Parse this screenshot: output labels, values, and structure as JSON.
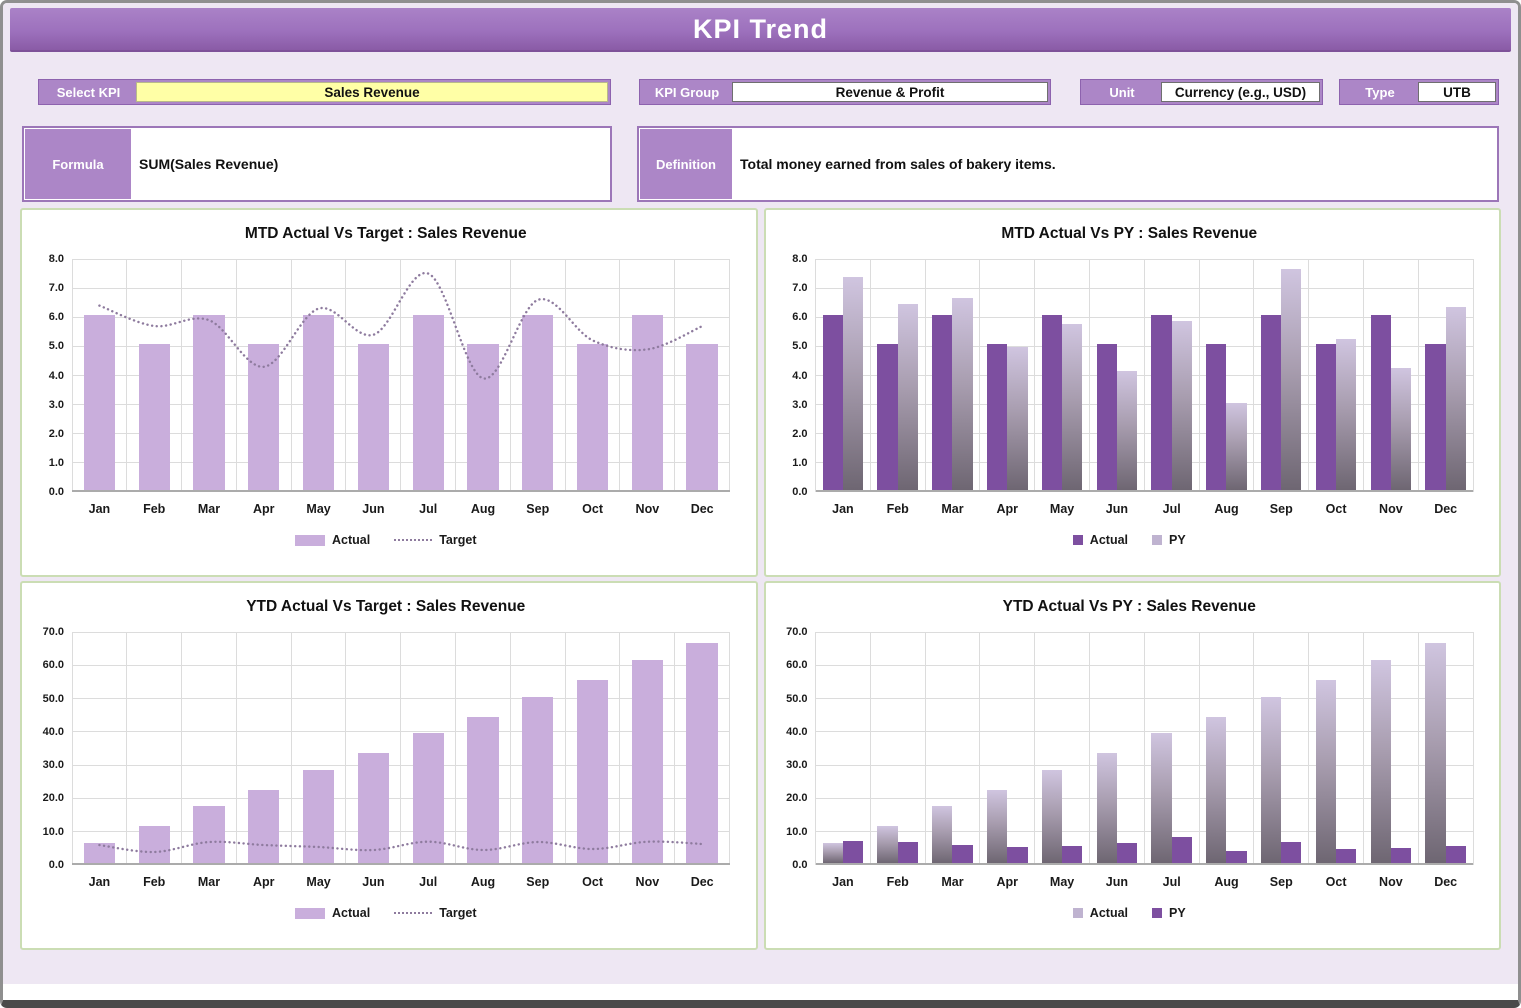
{
  "header": {
    "title": "KPI Trend"
  },
  "controls": {
    "select_kpi": {
      "label": "Select KPI",
      "value": "Sales Revenue"
    },
    "kpi_group": {
      "label": "KPI Group",
      "value": "Revenue & Profit"
    },
    "unit": {
      "label": "Unit",
      "value": "Currency (e.g., USD)"
    },
    "type": {
      "label": "Type",
      "value": "UTB"
    },
    "formula": {
      "label": "Formula",
      "value": "SUM(Sales Revenue)"
    },
    "definition": {
      "label": "Definition",
      "value": "Total money earned from sales of bakery items."
    }
  },
  "colors": {
    "accent_purple": "#9C76B8",
    "header_gradient_top": "#AA82C7",
    "header_gradient_bottom": "#8A5BA6",
    "light_bar": "#C9AEDC",
    "solid_bar": "#7D4FA0",
    "gradient_bar_top": "#D0C5E0",
    "gradient_bar_bottom": "#6E6672",
    "target_line": "#8E7B9E",
    "select_value_yellow": "#FFFFA6",
    "panel_border_green": "#CBDDB4",
    "page_background": "#EEE7F3"
  },
  "months": [
    "Jan",
    "Feb",
    "Mar",
    "Apr",
    "May",
    "Jun",
    "Jul",
    "Aug",
    "Sep",
    "Oct",
    "Nov",
    "Dec"
  ],
  "chart_data": [
    {
      "type": "bar+line",
      "title": "MTD Actual Vs Target : Sales Revenue",
      "categories": [
        "Jan",
        "Feb",
        "Mar",
        "Apr",
        "May",
        "Jun",
        "Jul",
        "Aug",
        "Sep",
        "Oct",
        "Nov",
        "Dec"
      ],
      "series": [
        {
          "name": "Actual",
          "type": "bar",
          "style": "light",
          "values": [
            6,
            5,
            6,
            5,
            6,
            5,
            6,
            5,
            6,
            5,
            6,
            5
          ]
        },
        {
          "name": "Target",
          "type": "line",
          "style": "dotted",
          "values": [
            6.4,
            5.7,
            5.9,
            4.3,
            6.3,
            5.4,
            7.5,
            3.9,
            6.6,
            5.2,
            4.9,
            5.7
          ]
        }
      ],
      "ylim": [
        0,
        8
      ],
      "ytick_step": 1,
      "grid": true,
      "legend_position": "bottom"
    },
    {
      "type": "grouped-bar",
      "title": "MTD Actual Vs PY : Sales Revenue",
      "categories": [
        "Jan",
        "Feb",
        "Mar",
        "Apr",
        "May",
        "Jun",
        "Jul",
        "Aug",
        "Sep",
        "Oct",
        "Nov",
        "Dec"
      ],
      "series": [
        {
          "name": "Actual",
          "type": "bar",
          "style": "solid",
          "values": [
            6,
            5,
            6,
            5,
            6,
            5,
            6,
            5,
            6,
            5,
            6,
            5
          ]
        },
        {
          "name": "PY",
          "type": "bar",
          "style": "gradient",
          "values": [
            7.3,
            6.4,
            6.6,
            4.9,
            5.7,
            4.1,
            5.8,
            3.0,
            7.6,
            5.2,
            4.2,
            6.3
          ]
        }
      ],
      "ylim": [
        0,
        8
      ],
      "ytick_step": 1,
      "grid": true,
      "legend_position": "bottom"
    },
    {
      "type": "bar+line",
      "title": "YTD Actual Vs Target : Sales Revenue",
      "categories": [
        "Jan",
        "Feb",
        "Mar",
        "Apr",
        "May",
        "Jun",
        "Jul",
        "Aug",
        "Sep",
        "Oct",
        "Nov",
        "Dec"
      ],
      "series": [
        {
          "name": "Actual",
          "type": "bar",
          "style": "light",
          "values": [
            6,
            11,
            17,
            22,
            28,
            33,
            39,
            44,
            50,
            55,
            61,
            66
          ]
        },
        {
          "name": "Target",
          "type": "line",
          "style": "dotted",
          "values": [
            6.0,
            3.9,
            6.9,
            6.0,
            5.4,
            4.5,
            7.0,
            4.5,
            6.9,
            4.8,
            7.0,
            6.3
          ]
        }
      ],
      "ylim": [
        0,
        70
      ],
      "ytick_step": 10,
      "grid": true,
      "legend_position": "bottom"
    },
    {
      "type": "grouped-bar",
      "title": "YTD Actual Vs PY : Sales Revenue",
      "categories": [
        "Jan",
        "Feb",
        "Mar",
        "Apr",
        "May",
        "Jun",
        "Jul",
        "Aug",
        "Sep",
        "Oct",
        "Nov",
        "Dec"
      ],
      "series": [
        {
          "name": "Actual",
          "type": "bar",
          "style": "gradient",
          "values": [
            6,
            11,
            17,
            22,
            28,
            33,
            39,
            44,
            50,
            55,
            61,
            66
          ]
        },
        {
          "name": "PY",
          "type": "bar",
          "style": "solid",
          "values": [
            6.6,
            6.3,
            5.5,
            4.8,
            5.1,
            5.9,
            7.8,
            3.6,
            6.3,
            4.3,
            4.5,
            5.1
          ]
        }
      ],
      "ylim": [
        0,
        70
      ],
      "ytick_step": 10,
      "grid": true,
      "legend_position": "bottom"
    }
  ]
}
